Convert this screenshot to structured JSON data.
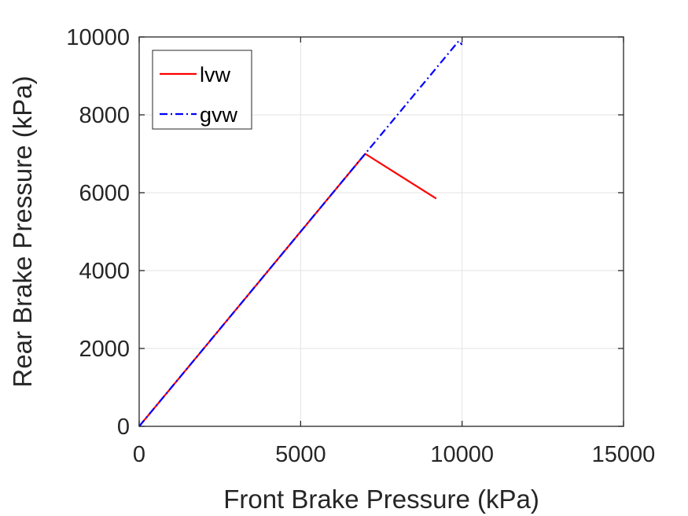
{
  "chart_data": {
    "type": "line",
    "xlabel": "Front Brake Pressure (kPa)",
    "ylabel": "Rear Brake Pressure (kPa)",
    "xlim": [
      0,
      15000
    ],
    "ylim": [
      0,
      10000
    ],
    "xticks": [
      0,
      5000,
      10000,
      15000
    ],
    "yticks": [
      0,
      2000,
      4000,
      6000,
      8000,
      10000
    ],
    "xtick_labels": [
      "0",
      "5000",
      "10000",
      "15000"
    ],
    "ytick_labels": [
      "0",
      "2000",
      "4000",
      "6000",
      "8000",
      "10000"
    ],
    "grid": true,
    "legend_position": "top-left",
    "series": [
      {
        "name": "lvw",
        "color": "#ff0000",
        "line_style": "solid",
        "x": [
          0,
          7000,
          9200
        ],
        "y": [
          0,
          7000,
          5850
        ]
      },
      {
        "name": "gvw",
        "color": "#0000ff",
        "line_style": "dash-dot",
        "x": [
          0,
          7000,
          9900,
          10000
        ],
        "y": [
          0,
          7000,
          9900,
          9800
        ]
      }
    ]
  }
}
